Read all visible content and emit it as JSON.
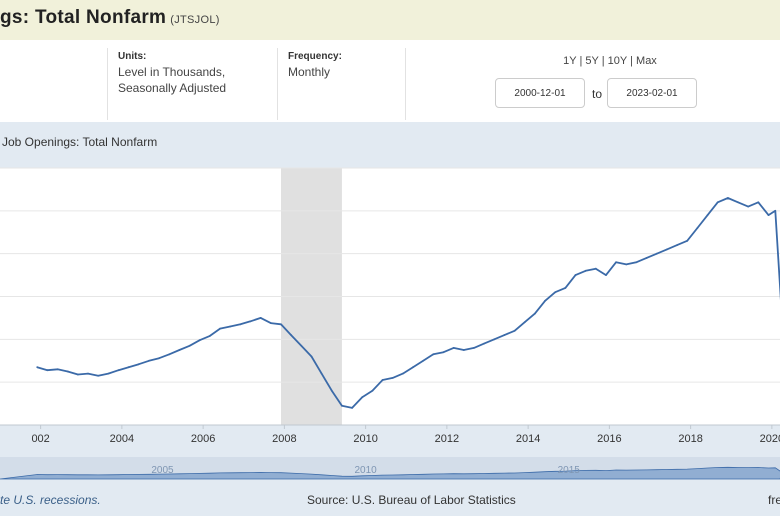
{
  "header": {
    "title": "gs: Total Nonfarm",
    "series_code": "(JTSJOL)"
  },
  "meta": {
    "units_label": "Units:",
    "units_value_1": "Level in Thousands,",
    "units_value_2": "Seasonally Adjusted",
    "frequency_label": "Frequency:",
    "frequency_value": "Monthly"
  },
  "range": {
    "buttons": [
      "1Y",
      "5Y",
      "10Y",
      "Max"
    ],
    "separator": " | ",
    "start": "2000-12-01",
    "to_label": "to",
    "end": "2023-02-01"
  },
  "footer": {
    "recession_note": "te U.S. recessions.",
    "source": "Source: U.S. Bureau of Labor Statistics",
    "right": "fre"
  },
  "colors": {
    "line": "#3b6aa8",
    "recession": "#e0e0e0",
    "plot_bg": "#ffffff",
    "frame_bg": "#e2eaf2",
    "navigator": "#5b86c0"
  },
  "chart_data": {
    "type": "line",
    "title": "Job Openings: Total Nonfarm",
    "x_tick_labels": [
      "002",
      "2004",
      "2006",
      "2008",
      "2010",
      "2012",
      "2014",
      "2016",
      "2018",
      "2020"
    ],
    "navigator_labels": [
      "2005",
      "2010",
      "2015"
    ],
    "recessions": [
      [
        "2007-12",
        "2009-06"
      ]
    ],
    "grid": true,
    "series": [
      {
        "x": [
          "2001-12",
          "2002-03",
          "2002-06",
          "2002-09",
          "2002-12",
          "2003-03",
          "2003-06",
          "2003-09",
          "2003-12",
          "2004-03",
          "2004-06",
          "2004-09",
          "2004-12",
          "2005-03",
          "2005-06",
          "2005-09",
          "2005-12",
          "2006-03",
          "2006-06",
          "2006-09",
          "2006-12",
          "2007-03",
          "2007-06",
          "2007-09",
          "2007-12",
          "2008-03",
          "2008-06",
          "2008-09",
          "2008-12",
          "2009-03",
          "2009-06",
          "2009-09",
          "2009-12",
          "2010-03",
          "2010-06",
          "2010-09",
          "2010-12",
          "2011-03",
          "2011-06",
          "2011-09",
          "2011-12",
          "2012-03",
          "2012-06",
          "2012-09",
          "2012-12",
          "2013-03",
          "2013-06",
          "2013-09",
          "2013-12",
          "2014-03",
          "2014-06",
          "2014-09",
          "2014-12",
          "2015-03",
          "2015-06",
          "2015-09",
          "2015-12",
          "2016-03",
          "2016-06",
          "2016-09",
          "2016-12",
          "2017-03",
          "2017-06",
          "2017-09",
          "2017-12",
          "2018-03",
          "2018-06",
          "2018-09",
          "2018-12",
          "2019-03",
          "2019-06",
          "2019-09",
          "2019-12",
          "2020-02",
          "2020-04"
        ],
        "values": [
          3350,
          3280,
          3300,
          3250,
          3180,
          3200,
          3150,
          3200,
          3280,
          3350,
          3420,
          3500,
          3560,
          3650,
          3750,
          3850,
          3980,
          4080,
          4250,
          4300,
          4350,
          4420,
          4500,
          4380,
          4350,
          4100,
          3850,
          3600,
          3200,
          2800,
          2450,
          2400,
          2650,
          2800,
          3050,
          3100,
          3200,
          3350,
          3500,
          3650,
          3700,
          3800,
          3750,
          3800,
          3900,
          4000,
          4100,
          4200,
          4400,
          4600,
          4900,
          5100,
          5200,
          5500,
          5600,
          5650,
          5500,
          5800,
          5750,
          5800,
          5900,
          6000,
          6100,
          6200,
          6300,
          6600,
          6900,
          7200,
          7300,
          7200,
          7100,
          7200,
          6900,
          7000,
          4500
        ]
      }
    ]
  }
}
